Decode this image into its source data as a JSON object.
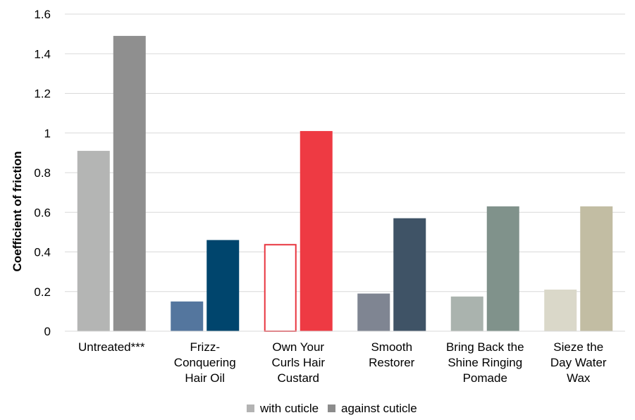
{
  "chart_data": {
    "type": "bar",
    "ylabel": "Coefficient of friction",
    "xlabel": "",
    "ylim": [
      0,
      1.6
    ],
    "yticks": [
      "0",
      "0.2",
      "0.4",
      "0.6",
      "0.8",
      "1",
      "1.2",
      "1.4",
      "1.6"
    ],
    "grid": true,
    "legend_position": "bottom",
    "categories": [
      [
        "Untreated***"
      ],
      [
        "Frizz-",
        "Conquering",
        "Hair Oil"
      ],
      [
        "Own Your",
        "Curls Hair",
        "Custard"
      ],
      [
        "Smooth",
        "Restorer"
      ],
      [
        "Bring Back the",
        "Shine Ringing",
        "Pomade"
      ],
      [
        "Sieze the",
        "Day Water",
        "Wax"
      ]
    ],
    "series": [
      {
        "name": "with cuticle",
        "legend_color": "#b3b3b3",
        "values": [
          0.91,
          0.15,
          0.44,
          0.19,
          0.175,
          0.21
        ],
        "colors": [
          "#b4b5b4",
          "#54769e",
          "#ffffff",
          "#7f8592",
          "#aab3ae",
          "#dad8c9"
        ],
        "outlines": [
          null,
          null,
          "#e8353f",
          null,
          null,
          null
        ]
      },
      {
        "name": "against cuticle",
        "legend_color": "#8c8c8c",
        "values": [
          1.49,
          0.46,
          1.01,
          0.57,
          0.63,
          0.63
        ],
        "colors": [
          "#8f8f8f",
          "#00456d",
          "#ee3a43",
          "#3f5366",
          "#80928b",
          "#c2bda3"
        ],
        "outlines": [
          null,
          null,
          null,
          null,
          null,
          null
        ]
      }
    ]
  }
}
